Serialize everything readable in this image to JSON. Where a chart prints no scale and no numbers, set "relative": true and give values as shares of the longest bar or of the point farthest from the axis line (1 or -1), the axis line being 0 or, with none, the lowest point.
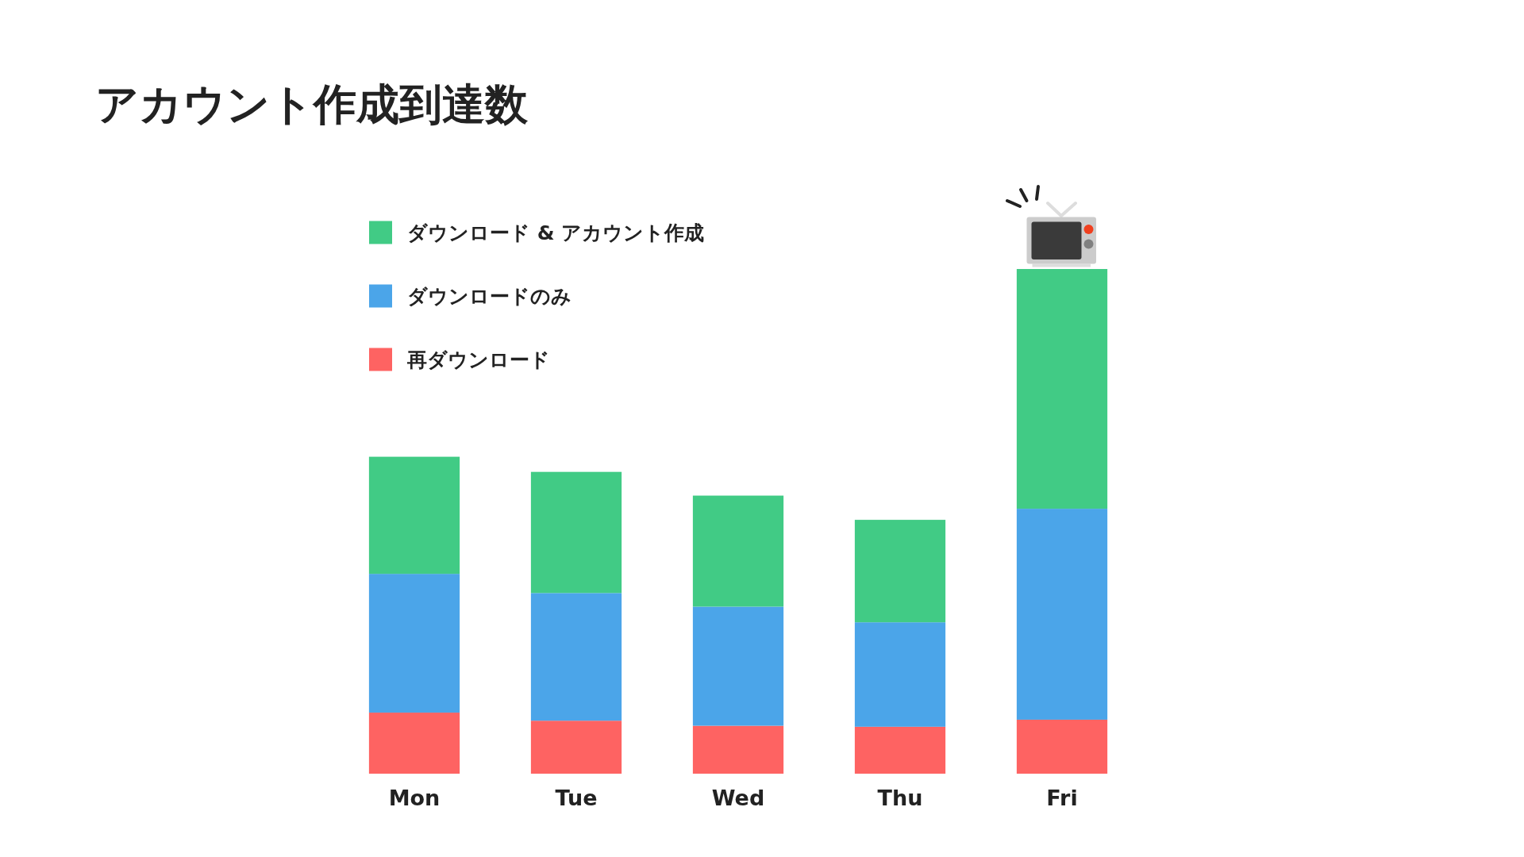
{
  "chart_data": {
    "type": "bar",
    "title": "アカウント作成到達数",
    "categories": [
      "Mon",
      "Tue",
      "Wed",
      "Thu",
      "Fri"
    ],
    "stacked": true,
    "relative": true,
    "legend": "top left",
    "series": [
      {
        "name": "再ダウンロード",
        "color": "#fe6362",
        "values": [
          0.121,
          0.105,
          0.095,
          0.093,
          0.107
        ]
      },
      {
        "name": "ダウンロードのみ",
        "color": "#4ba5e9",
        "values": [
          0.275,
          0.253,
          0.236,
          0.207,
          0.418
        ]
      },
      {
        "name": "ダウンロード & アカウント作成",
        "color": "#41cb85",
        "values": [
          0.232,
          0.24,
          0.22,
          0.203,
          0.475
        ]
      }
    ]
  }
}
